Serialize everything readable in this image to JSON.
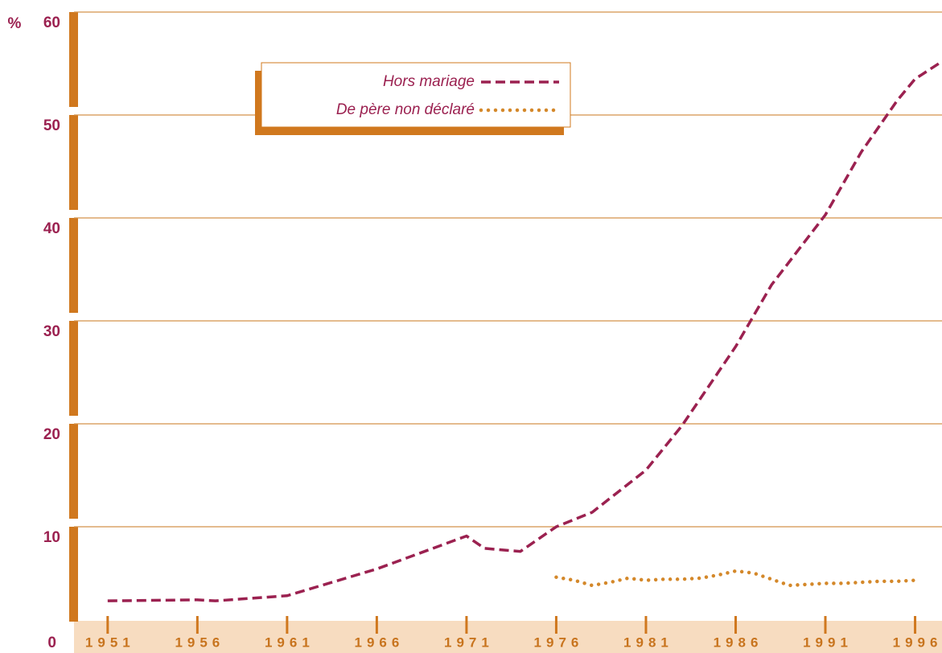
{
  "chart_data": {
    "type": "line",
    "y_label": "%",
    "xlim": [
      1945,
      1997.5
    ],
    "xticks": [
      1951,
      1956,
      1961,
      1966,
      1971,
      1976,
      1981,
      1986,
      1991,
      1996
    ],
    "ylim": [
      0,
      60
    ],
    "yticks": [
      0,
      10,
      20,
      30,
      40,
      50,
      60
    ],
    "grid": true,
    "legend": "upper left",
    "series": [
      {
        "name": "Hors mariage",
        "color": "#9b2150",
        "style": "dashed",
        "x": [
          1951,
          1956,
          1957,
          1961,
          1966,
          1971,
          1972,
          1974,
          1976,
          1978,
          1981,
          1983,
          1986,
          1988,
          1991,
          1993,
          1995,
          1996,
          1997.5
        ],
        "values": [
          2.8,
          2.9,
          2.8,
          3.3,
          5.9,
          9.1,
          7.9,
          7.6,
          10.0,
          11.4,
          15.5,
          19.8,
          27.5,
          33.5,
          40.3,
          46.4,
          51.4,
          53.5,
          55.2
        ]
      },
      {
        "name": "De père non déclaré",
        "color": "#d4882a",
        "style": "dotted",
        "x": [
          1976,
          1977,
          1978,
          1979,
          1980,
          1981,
          1982,
          1983,
          1984,
          1985,
          1986,
          1987,
          1988,
          1989,
          1990,
          1991,
          1992,
          1993,
          1994,
          1995,
          1996
        ],
        "values": [
          5.1,
          4.8,
          4.3,
          4.6,
          5.0,
          4.8,
          4.9,
          4.9,
          5.0,
          5.3,
          5.7,
          5.5,
          4.9,
          4.3,
          4.4,
          4.5,
          4.5,
          4.6,
          4.7,
          4.7,
          4.8
        ]
      }
    ]
  }
}
